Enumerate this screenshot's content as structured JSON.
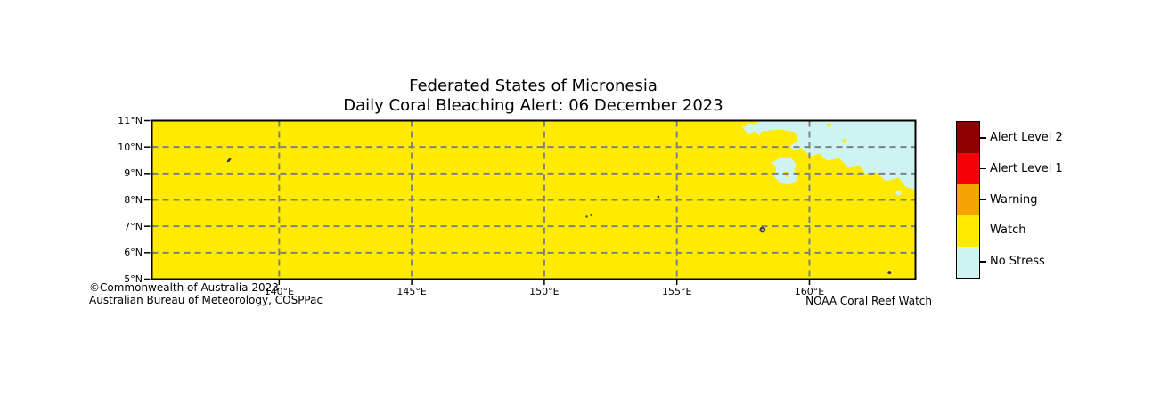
{
  "figure": {
    "title_line1": "Federated States of Micronesia",
    "title_line2": "Daily Coral Bleaching Alert: 06 December 2023"
  },
  "map": {
    "x_ticks": [
      "140°E",
      "145°E",
      "150°E",
      "155°E",
      "160°E"
    ],
    "y_ticks": [
      "11°N",
      "10°N",
      "9°N",
      "8°N",
      "7°N",
      "6°N",
      "5°N"
    ],
    "lon_range": [
      135.2,
      164.0
    ],
    "lat_range": [
      5,
      11
    ],
    "dominant_status": "Watch",
    "no_stress_area": "northeast corner of map",
    "islands": [
      {
        "lon": 138.11,
        "lat": 9.5,
        "shape": "streak",
        "r": 3.0
      },
      {
        "lon": 154.3,
        "lat": 8.12,
        "shape": "dot",
        "r": 1.3
      },
      {
        "lon": 151.6,
        "lat": 7.36,
        "shape": "dot",
        "r": 1.2
      },
      {
        "lon": 151.77,
        "lat": 7.43,
        "shape": "dot",
        "r": 1.4
      },
      {
        "lon": 158.23,
        "lat": 6.87,
        "shape": "ringed-dot",
        "r": 3.4
      },
      {
        "lon": 163.02,
        "lat": 5.25,
        "shape": "dot",
        "r": 2.0
      }
    ],
    "colors": {
      "watch_fill": "#FFEB00",
      "no_stress_fill": "#CDF3F3",
      "grid_line": "#808080",
      "map_border": "#000000",
      "island": "#3C3C44",
      "island_center": "#9FA3A8"
    }
  },
  "legend": {
    "items": [
      {
        "label": "Alert Level 2",
        "color": "#8E0000"
      },
      {
        "label": "Alert Level 1",
        "color": "#F80008"
      },
      {
        "label": "Warning",
        "color": "#F3A403"
      },
      {
        "label": "Watch",
        "color": "#FFEB00"
      },
      {
        "label": "No Stress",
        "color": "#CDF3F3"
      }
    ]
  },
  "credits": {
    "line1": "©Commonwealth of Australia 2023",
    "line2": "Australian Bureau of Meteorology, COSPPac",
    "right": "NOAA Coral Reef Watch"
  }
}
